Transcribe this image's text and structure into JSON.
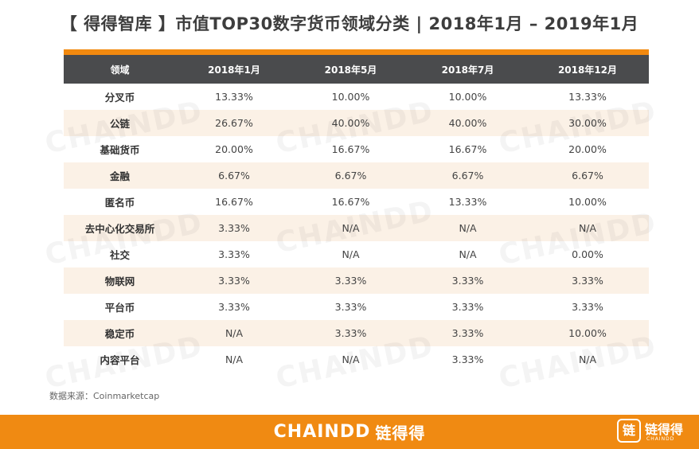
{
  "title": "【 得得智库 】市值TOP30数字货币领域分类 | 2018年1月 – 2019年1月",
  "table": {
    "headers": [
      "领域",
      "2018年1月",
      "2018年5月",
      "2018年7月",
      "2018年12月"
    ],
    "rows": [
      [
        "分叉币",
        "13.33%",
        "10.00%",
        "10.00%",
        "13.33%"
      ],
      [
        "公链",
        "26.67%",
        "40.00%",
        "40.00%",
        "30.00%"
      ],
      [
        "基础货币",
        "20.00%",
        "16.67%",
        "16.67%",
        "20.00%"
      ],
      [
        "金融",
        "6.67%",
        "6.67%",
        "6.67%",
        "6.67%"
      ],
      [
        "匿名币",
        "16.67%",
        "16.67%",
        "13.33%",
        "10.00%"
      ],
      [
        "去中心化交易所",
        "3.33%",
        "N/A",
        "N/A",
        "N/A"
      ],
      [
        "社交",
        "3.33%",
        "N/A",
        "N/A",
        "0.00%"
      ],
      [
        "物联网",
        "3.33%",
        "3.33%",
        "3.33%",
        "3.33%"
      ],
      [
        "平台币",
        "3.33%",
        "3.33%",
        "3.33%",
        "3.33%"
      ],
      [
        "稳定币",
        "N/A",
        "3.33%",
        "3.33%",
        "10.00%"
      ],
      [
        "内容平台",
        "N/A",
        "N/A",
        "3.33%",
        "N/A"
      ]
    ]
  },
  "source": "数据来源：Coinmarketcap",
  "watermark": "CHAINDD",
  "footer": {
    "brand_en": "CHAINDD",
    "brand_cn": "链得得",
    "logo_glyph": "链",
    "logo_text": "链得得",
    "logo_sub": "CHAINDD"
  },
  "colors": {
    "accent": "#f08a12",
    "header_bg": "#4a4b4d",
    "alt_row_bg": "#fbf1e6"
  }
}
